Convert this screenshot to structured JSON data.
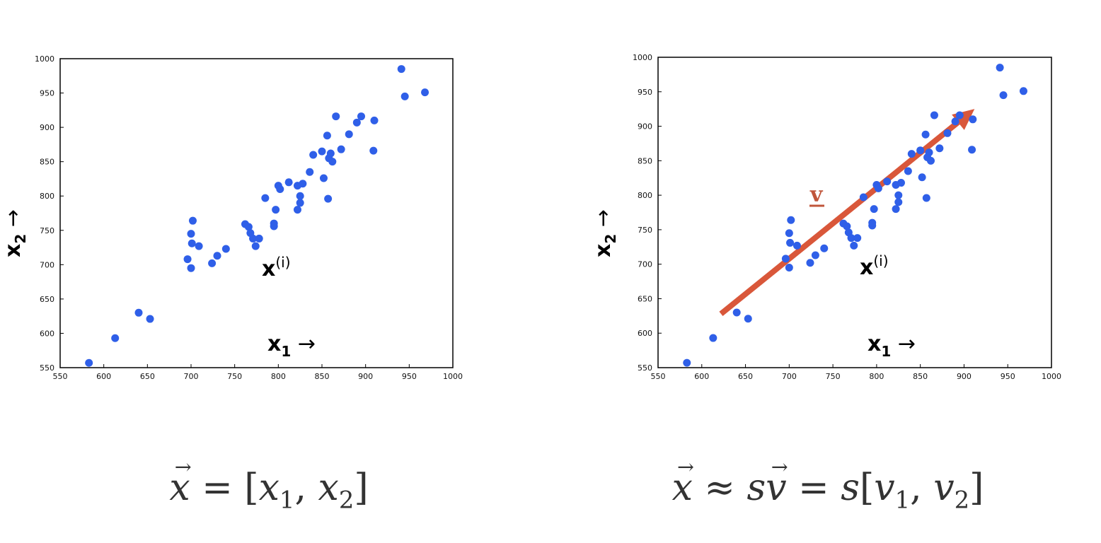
{
  "colors": {
    "points": "#2f5fe8",
    "arrow": "#d9573a",
    "axis": "#000000",
    "label_v": "#c0553a"
  },
  "chart_data": [
    {
      "type": "scatter",
      "title": "",
      "xlabel": "x1 →",
      "ylabel": "x2 →",
      "xlim": [
        550,
        1000
      ],
      "ylim": [
        550,
        1000
      ],
      "xticks": [
        "550",
        "600",
        "650",
        "700",
        "750",
        "800",
        "850",
        "900",
        "950",
        "1000"
      ],
      "yticks": [
        "550",
        "600",
        "650",
        "700",
        "750",
        "800",
        "850",
        "900",
        "950",
        "1000"
      ],
      "grid": false,
      "point_label": "x(i)",
      "points": [
        [
          583,
          557
        ],
        [
          613,
          593
        ],
        [
          640,
          630
        ],
        [
          653,
          621
        ],
        [
          696,
          708
        ],
        [
          700,
          695
        ],
        [
          700,
          745
        ],
        [
          701,
          731
        ],
        [
          702,
          764
        ],
        [
          709,
          727
        ],
        [
          724,
          702
        ],
        [
          730,
          713
        ],
        [
          740,
          723
        ],
        [
          762,
          759
        ],
        [
          766,
          755
        ],
        [
          768,
          746
        ],
        [
          771,
          738
        ],
        [
          774,
          727
        ],
        [
          778,
          738
        ],
        [
          785,
          797
        ],
        [
          795,
          756
        ],
        [
          795,
          760
        ],
        [
          797,
          780
        ],
        [
          800,
          815
        ],
        [
          802,
          810
        ],
        [
          812,
          820
        ],
        [
          822,
          815
        ],
        [
          822,
          780
        ],
        [
          825,
          790
        ],
        [
          825,
          800
        ],
        [
          828,
          818
        ],
        [
          836,
          835
        ],
        [
          840,
          860
        ],
        [
          850,
          865
        ],
        [
          852,
          826
        ],
        [
          856,
          888
        ],
        [
          857,
          796
        ],
        [
          858,
          855
        ],
        [
          860,
          862
        ],
        [
          862,
          850
        ],
        [
          866,
          916
        ],
        [
          872,
          868
        ],
        [
          881,
          890
        ],
        [
          890,
          907
        ],
        [
          895,
          916
        ],
        [
          909,
          866
        ],
        [
          910,
          910
        ],
        [
          941,
          985
        ],
        [
          945,
          945
        ],
        [
          968,
          951
        ]
      ]
    },
    {
      "type": "scatter",
      "title": "",
      "xlabel": "x1 →",
      "ylabel": "x2 →",
      "xlim": [
        550,
        1000
      ],
      "ylim": [
        550,
        1000
      ],
      "xticks": [
        "550",
        "600",
        "650",
        "700",
        "750",
        "800",
        "850",
        "900",
        "950",
        "1000"
      ],
      "yticks": [
        "550",
        "600",
        "650",
        "700",
        "750",
        "800",
        "850",
        "900",
        "950",
        "1000"
      ],
      "grid": false,
      "point_label": "x(i)",
      "vector_label": "v",
      "arrow": {
        "from": [
          622,
          628
        ],
        "to": [
          912,
          925
        ]
      },
      "points": [
        [
          583,
          557
        ],
        [
          613,
          593
        ],
        [
          640,
          630
        ],
        [
          653,
          621
        ],
        [
          696,
          708
        ],
        [
          700,
          695
        ],
        [
          700,
          745
        ],
        [
          701,
          731
        ],
        [
          702,
          764
        ],
        [
          709,
          727
        ],
        [
          724,
          702
        ],
        [
          730,
          713
        ],
        [
          740,
          723
        ],
        [
          762,
          759
        ],
        [
          766,
          755
        ],
        [
          768,
          746
        ],
        [
          771,
          738
        ],
        [
          774,
          727
        ],
        [
          778,
          738
        ],
        [
          785,
          797
        ],
        [
          795,
          756
        ],
        [
          795,
          760
        ],
        [
          797,
          780
        ],
        [
          800,
          815
        ],
        [
          802,
          810
        ],
        [
          812,
          820
        ],
        [
          822,
          815
        ],
        [
          822,
          780
        ],
        [
          825,
          790
        ],
        [
          825,
          800
        ],
        [
          828,
          818
        ],
        [
          836,
          835
        ],
        [
          840,
          860
        ],
        [
          850,
          865
        ],
        [
          852,
          826
        ],
        [
          856,
          888
        ],
        [
          857,
          796
        ],
        [
          858,
          855
        ],
        [
          860,
          862
        ],
        [
          862,
          850
        ],
        [
          866,
          916
        ],
        [
          872,
          868
        ],
        [
          881,
          890
        ],
        [
          890,
          907
        ],
        [
          895,
          916
        ],
        [
          909,
          866
        ],
        [
          910,
          910
        ],
        [
          941,
          985
        ],
        [
          945,
          945
        ],
        [
          968,
          951
        ]
      ]
    }
  ],
  "formulas": {
    "left": {
      "lhs": "x",
      "eq": " = [",
      "a": "x",
      "a_sub": "1",
      "comma": ", ",
      "b": "x",
      "b_sub": "2",
      "close": "]"
    },
    "right": {
      "lhs": "x",
      "approx": " ≈ ",
      "s1": "s",
      "v": "v",
      "eq": " = ",
      "s2": "s",
      "open": "[",
      "a": "v",
      "a_sub": "1",
      "comma": ", ",
      "b": "v",
      "b_sub": "2",
      "close": "]"
    }
  }
}
